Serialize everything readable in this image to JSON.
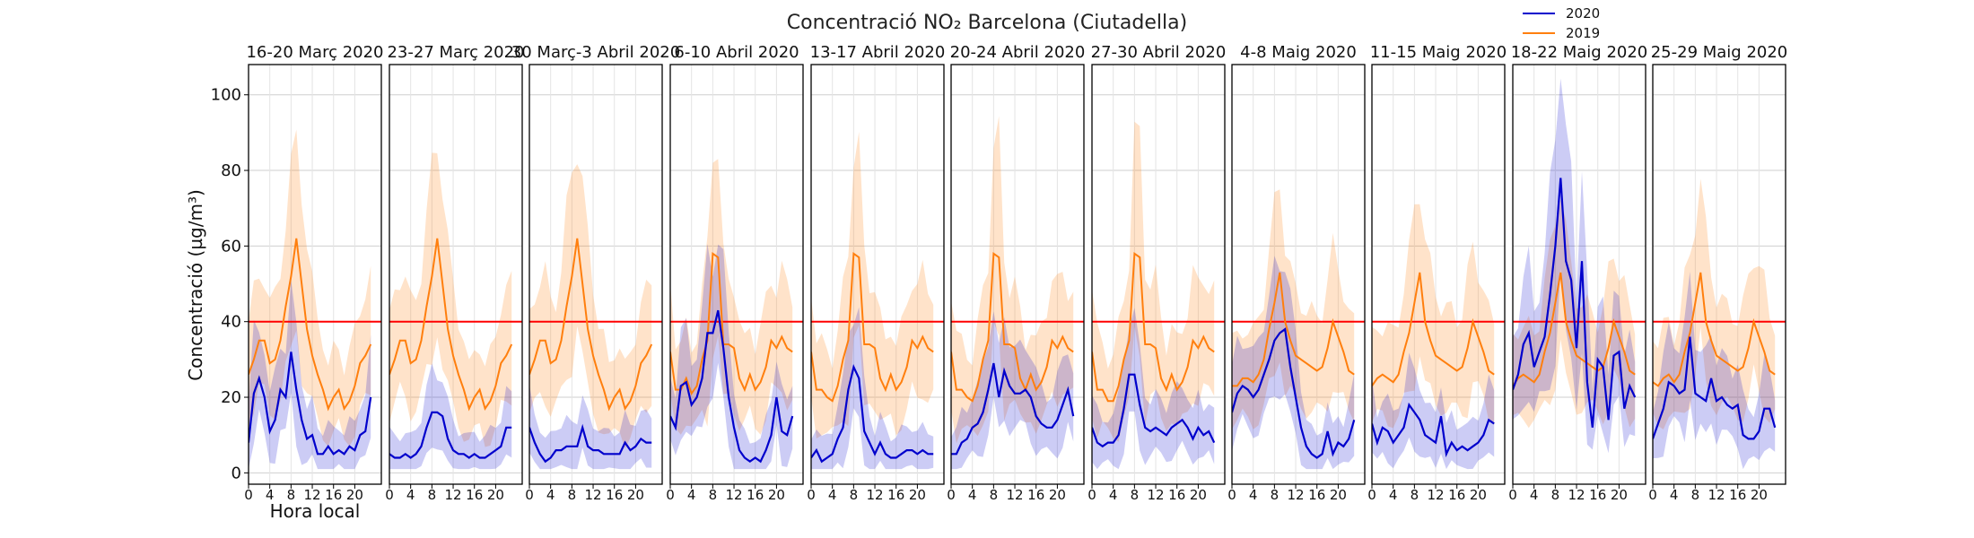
{
  "figure": {
    "title": "Concentració NO₂ Barcelona (Ciutadella)",
    "xlabel": "Hora local",
    "ylabel": "Concentració (µg/m³)",
    "legend": [
      {
        "name": "2020",
        "color": "#0000cc"
      },
      {
        "name": "2019",
        "color": "#ff7f0e"
      }
    ]
  },
  "chart_data": {
    "type": "line",
    "x_hours": [
      0,
      1,
      2,
      3,
      4,
      5,
      6,
      7,
      8,
      9,
      10,
      11,
      12,
      13,
      14,
      15,
      16,
      17,
      18,
      19,
      20,
      21,
      22,
      23
    ],
    "xlim": [
      0,
      25
    ],
    "ylim": [
      -3,
      108
    ],
    "x_ticks": [
      0,
      4,
      8,
      12,
      16,
      20
    ],
    "y_ticks": [
      0,
      20,
      40,
      60,
      80,
      100
    ],
    "limit_line": {
      "value": 40,
      "color": "#ff0000"
    },
    "grid": true,
    "legend_position": "top-right",
    "panels": [
      {
        "label": "16-20 Març 2020",
        "y2020": [
          8,
          21,
          25,
          20,
          11,
          14,
          22,
          20,
          32,
          22,
          14,
          9,
          10,
          5,
          5,
          7,
          5,
          6,
          5,
          7,
          6,
          10,
          11,
          20
        ],
        "y2019": [
          26,
          30,
          35,
          35,
          29,
          30,
          35,
          44,
          52,
          62,
          50,
          38,
          31,
          26,
          22,
          17,
          20,
          22,
          17,
          19,
          23,
          29,
          31,
          34
        ]
      },
      {
        "label": "23-27 Març 2020",
        "y2020": [
          5,
          4,
          4,
          5,
          4,
          5,
          7,
          12,
          16,
          16,
          15,
          9,
          6,
          5,
          5,
          4,
          5,
          4,
          4,
          5,
          6,
          7,
          12,
          12
        ],
        "y2019": [
          26,
          30,
          35,
          35,
          29,
          30,
          35,
          44,
          52,
          62,
          50,
          38,
          31,
          26,
          22,
          17,
          20,
          22,
          17,
          19,
          23,
          29,
          31,
          34
        ]
      },
      {
        "label": "30 Març-3 Abril 2020",
        "y2020": [
          12,
          8,
          5,
          3,
          4,
          6,
          6,
          7,
          7,
          7,
          12,
          7,
          6,
          6,
          5,
          5,
          5,
          5,
          8,
          6,
          7,
          9,
          8,
          8
        ],
        "y2019": [
          26,
          30,
          35,
          35,
          29,
          30,
          35,
          44,
          52,
          62,
          50,
          38,
          31,
          26,
          22,
          17,
          20,
          22,
          17,
          19,
          23,
          29,
          31,
          34
        ]
      },
      {
        "label": "6-10 Abril 2020",
        "y2020": [
          15,
          12,
          23,
          24,
          18,
          20,
          25,
          37,
          37,
          43,
          33,
          20,
          12,
          6,
          4,
          3,
          4,
          3,
          6,
          10,
          20,
          11,
          10,
          15
        ],
        "y2019": [
          32,
          22,
          22,
          25,
          21,
          23,
          30,
          35,
          58,
          57,
          34,
          34,
          33,
          25,
          22,
          26,
          22,
          24,
          28,
          35,
          33,
          36,
          33,
          32
        ]
      },
      {
        "label": "13-17 Abril 2020",
        "y2020": [
          4,
          6,
          3,
          4,
          5,
          9,
          12,
          22,
          28,
          25,
          11,
          8,
          5,
          8,
          5,
          4,
          4,
          5,
          6,
          6,
          5,
          6,
          5,
          5
        ],
        "y2019": [
          32,
          22,
          22,
          20,
          19,
          23,
          30,
          35,
          58,
          57,
          34,
          34,
          33,
          25,
          22,
          26,
          22,
          24,
          28,
          35,
          33,
          36,
          33,
          32
        ]
      },
      {
        "label": "20-24 Abril 2020",
        "y2020": [
          5,
          5,
          8,
          9,
          12,
          13,
          16,
          22,
          29,
          20,
          27,
          23,
          21,
          21,
          22,
          20,
          15,
          13,
          12,
          12,
          14,
          18,
          22,
          15
        ],
        "y2019": [
          32,
          22,
          22,
          20,
          19,
          23,
          30,
          35,
          58,
          57,
          34,
          34,
          33,
          25,
          22,
          26,
          22,
          24,
          28,
          35,
          33,
          36,
          33,
          32
        ]
      },
      {
        "label": "27-30 Abril 2020",
        "y2020": [
          12,
          8,
          7,
          8,
          8,
          10,
          17,
          26,
          26,
          18,
          12,
          11,
          12,
          11,
          10,
          12,
          13,
          14,
          12,
          9,
          12,
          10,
          11,
          8
        ],
        "y2019": [
          32,
          22,
          22,
          19,
          19,
          23,
          30,
          35,
          58,
          57,
          34,
          34,
          33,
          25,
          22,
          26,
          22,
          24,
          28,
          35,
          33,
          36,
          33,
          32
        ]
      },
      {
        "label": "4-8 Maig 2020",
        "y2020": [
          16,
          21,
          23,
          22,
          20,
          22,
          26,
          30,
          35,
          37,
          38,
          28,
          20,
          12,
          7,
          5,
          4,
          5,
          11,
          5,
          8,
          7,
          9,
          14
        ],
        "y2019": [
          23,
          23,
          25,
          25,
          24,
          26,
          30,
          38,
          45,
          53,
          40,
          35,
          31,
          30,
          29,
          28,
          27,
          28,
          33,
          40,
          36,
          32,
          27,
          26
        ]
      },
      {
        "label": "11-15 Maig 2020",
        "y2020": [
          13,
          8,
          12,
          11,
          8,
          10,
          12,
          18,
          16,
          14,
          10,
          9,
          8,
          15,
          5,
          8,
          6,
          7,
          6,
          7,
          8,
          10,
          14,
          13
        ],
        "y2019": [
          23,
          25,
          26,
          25,
          24,
          26,
          32,
          37,
          45,
          53,
          40,
          35,
          31,
          30,
          29,
          28,
          27,
          28,
          33,
          40,
          36,
          32,
          27,
          26
        ]
      },
      {
        "label": "18-22 Maig 2020",
        "y2020": [
          22,
          26,
          34,
          37,
          28,
          32,
          36,
          47,
          60,
          78,
          56,
          51,
          33,
          56,
          24,
          12,
          30,
          28,
          14,
          31,
          32,
          17,
          23,
          20
        ],
        "y2019": [
          23,
          25,
          26,
          25,
          24,
          26,
          32,
          37,
          45,
          53,
          40,
          35,
          31,
          30,
          29,
          28,
          27,
          28,
          33,
          40,
          36,
          32,
          27,
          26
        ]
      },
      {
        "label": "25-29 Maig 2020",
        "y2020": [
          9,
          13,
          17,
          24,
          23,
          21,
          22,
          36,
          21,
          20,
          19,
          25,
          19,
          20,
          18,
          17,
          18,
          10,
          9,
          9,
          11,
          17,
          17,
          12
        ],
        "y2019": [
          24,
          23,
          25,
          26,
          24,
          26,
          32,
          37,
          45,
          53,
          40,
          35,
          31,
          30,
          29,
          28,
          27,
          28,
          33,
          40,
          36,
          32,
          27,
          26
        ]
      }
    ]
  }
}
